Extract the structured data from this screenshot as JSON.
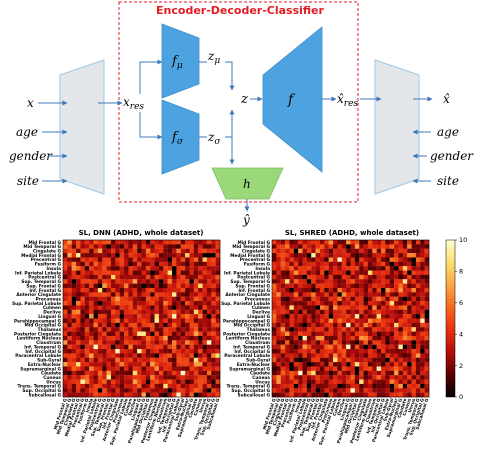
{
  "diagram": {
    "title": "Encoder-Decoder-Classifier",
    "title_color": "#e31c23",
    "box_color": "#e31c23",
    "encoder_color": "#4da3e0",
    "classifier_color": "#9bd87a",
    "bar_fill": "#e3e7ea",
    "bar_stroke": "#9ec7e4",
    "arrow_color": "#3f78b8",
    "inputs": [
      "x",
      "age",
      "gender",
      "site"
    ],
    "outputs": [
      "x̂",
      "age",
      "gender",
      "site"
    ],
    "x_res": "x",
    "x_res_sub": "res",
    "f_mu": "f",
    "f_mu_sub": "μ",
    "f_sigma": "f",
    "f_sigma_sub": "σ",
    "z_mu": "z",
    "z_mu_sub": "μ",
    "z_sigma": "z",
    "z_sigma_sub": "σ",
    "z": "z",
    "f": "f",
    "x_hat_res": "x̂",
    "x_hat_res_sub": "res",
    "h": "h",
    "y_hat": "ŷ"
  },
  "heatmaps": {
    "left_title": "SL, DNN (ADHD, whole dataset)",
    "right_title": "SL, SHRED (ADHD, whole dataset)",
    "regions": [
      "Mid Frontal G",
      "Mid Temporal G",
      "Cingulate G",
      "Medial Frontal G",
      "Precentral G",
      "Fusiform G",
      "Insula",
      "Inf. Parietal Lobule",
      "Postcentral G",
      "Sup. Temporal G",
      "Sup. Frontal G",
      "Inf. Frontal G",
      "Anterior Cingulate",
      "Precuneus",
      "Sup. Parietal Lobule",
      "Culmen",
      "Declive",
      "Lingual G",
      "Parahippocampal G",
      "Mid Occipital G",
      "Thalamus",
      "Posterior Cingulate",
      "Lentiform Nucleus",
      "Claustrum",
      "Inf. Temporal G",
      "Inf. Occipital G",
      "Paracentral Lobule",
      "Sub-Gyral",
      "Extra-Nuclear",
      "Supramarginal G",
      "Caudate",
      "Cuneus",
      "Uncus",
      "Trans. Temporal G",
      "Sup. Occipital G",
      "Subcallosal G"
    ]
  },
  "chart_data": {
    "type": "heatmap",
    "colorbar": {
      "min": 0,
      "max": 10,
      "ticks": [
        "0",
        "2",
        "4",
        "6",
        "8",
        "10"
      ],
      "colormap": [
        "#000000",
        "#5c0000",
        "#b30c0c",
        "#e8300f",
        "#f7691a",
        "#fca64a",
        "#fde06e",
        "#ffffd2"
      ]
    },
    "matrices": [
      {
        "name": "SL, DNN (ADHD, whole dataset)",
        "base": 3.2,
        "seed": 7,
        "hotspots": [
          [
            3,
            3
          ],
          [
            21,
            17
          ],
          [
            21,
            18
          ],
          [
            23,
            33
          ],
          [
            27,
            30
          ],
          [
            11,
            8
          ],
          [
            10,
            31
          ],
          [
            12,
            25
          ],
          [
            32,
            4
          ],
          [
            25,
            17
          ],
          [
            26,
            35
          ],
          [
            28,
            3
          ],
          [
            7,
            24
          ],
          [
            16,
            30
          ]
        ]
      },
      {
        "name": "SL, SHRED (ADHD, whole dataset)",
        "base": 3.0,
        "seed": 23,
        "hotspots": [
          [
            24,
            29
          ],
          [
            28,
            19
          ],
          [
            32,
            20
          ],
          [
            18,
            34
          ],
          [
            6,
            30
          ],
          [
            19,
            17
          ],
          [
            22,
            7
          ],
          [
            9,
            3
          ],
          [
            14,
            27
          ],
          [
            30,
            9
          ],
          [
            4,
            15
          ],
          [
            17,
            24
          ]
        ]
      }
    ]
  }
}
